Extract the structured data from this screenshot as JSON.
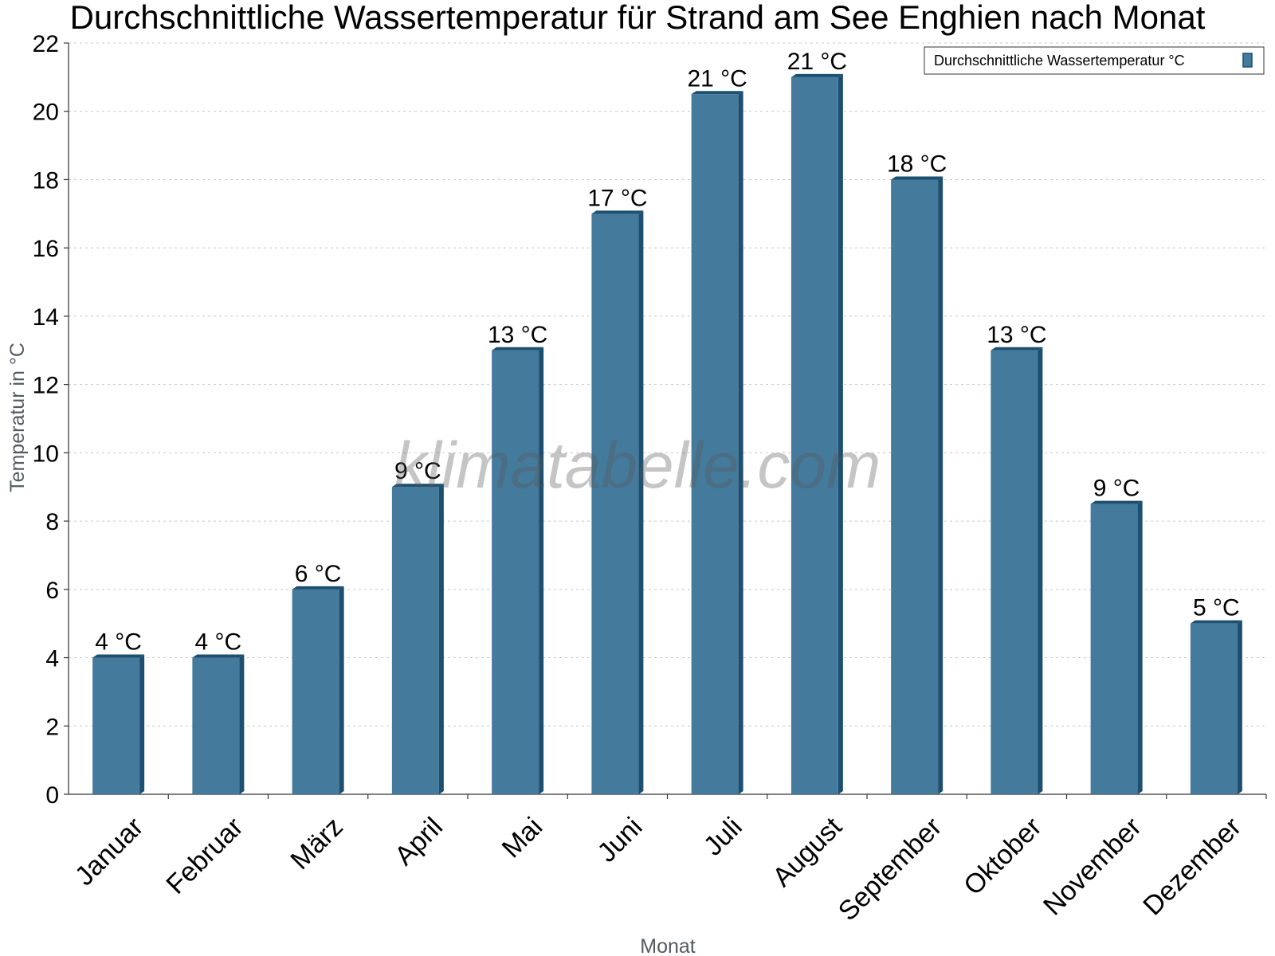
{
  "chart_data": {
    "type": "bar",
    "title": "Durchschnittliche Wassertemperatur für Strand am See Enghien nach Monat",
    "xlabel": "Monat",
    "ylabel": "Temperatur in °C",
    "categories": [
      "Januar",
      "Februar",
      "März",
      "April",
      "Mai",
      "Juni",
      "Juli",
      "August",
      "September",
      "Oktober",
      "November",
      "Dezember"
    ],
    "series": [
      {
        "name": "Durchschnittliche Wassertemperatur °C",
        "values": [
          4,
          4,
          6,
          9,
          13,
          17,
          20.5,
          21,
          18,
          13,
          8.5,
          5
        ],
        "labels": [
          "4 °C",
          "4 °C",
          "6 °C",
          "9 °C",
          "13 °C",
          "17 °C",
          "21 °C",
          "21 °C",
          "18 °C",
          "13 °C",
          "9 °C",
          "5 °C"
        ]
      }
    ],
    "ylim": [
      0,
      22
    ],
    "yticks": [
      "0",
      "2",
      "4",
      "6",
      "8",
      "10",
      "12",
      "14",
      "16",
      "18",
      "20",
      "22"
    ],
    "grid": true,
    "legend_position": "top-right",
    "colors": {
      "bar": "#447a9c",
      "bar_side": "#1c4f70"
    }
  },
  "watermark": "klimatabelle.com"
}
